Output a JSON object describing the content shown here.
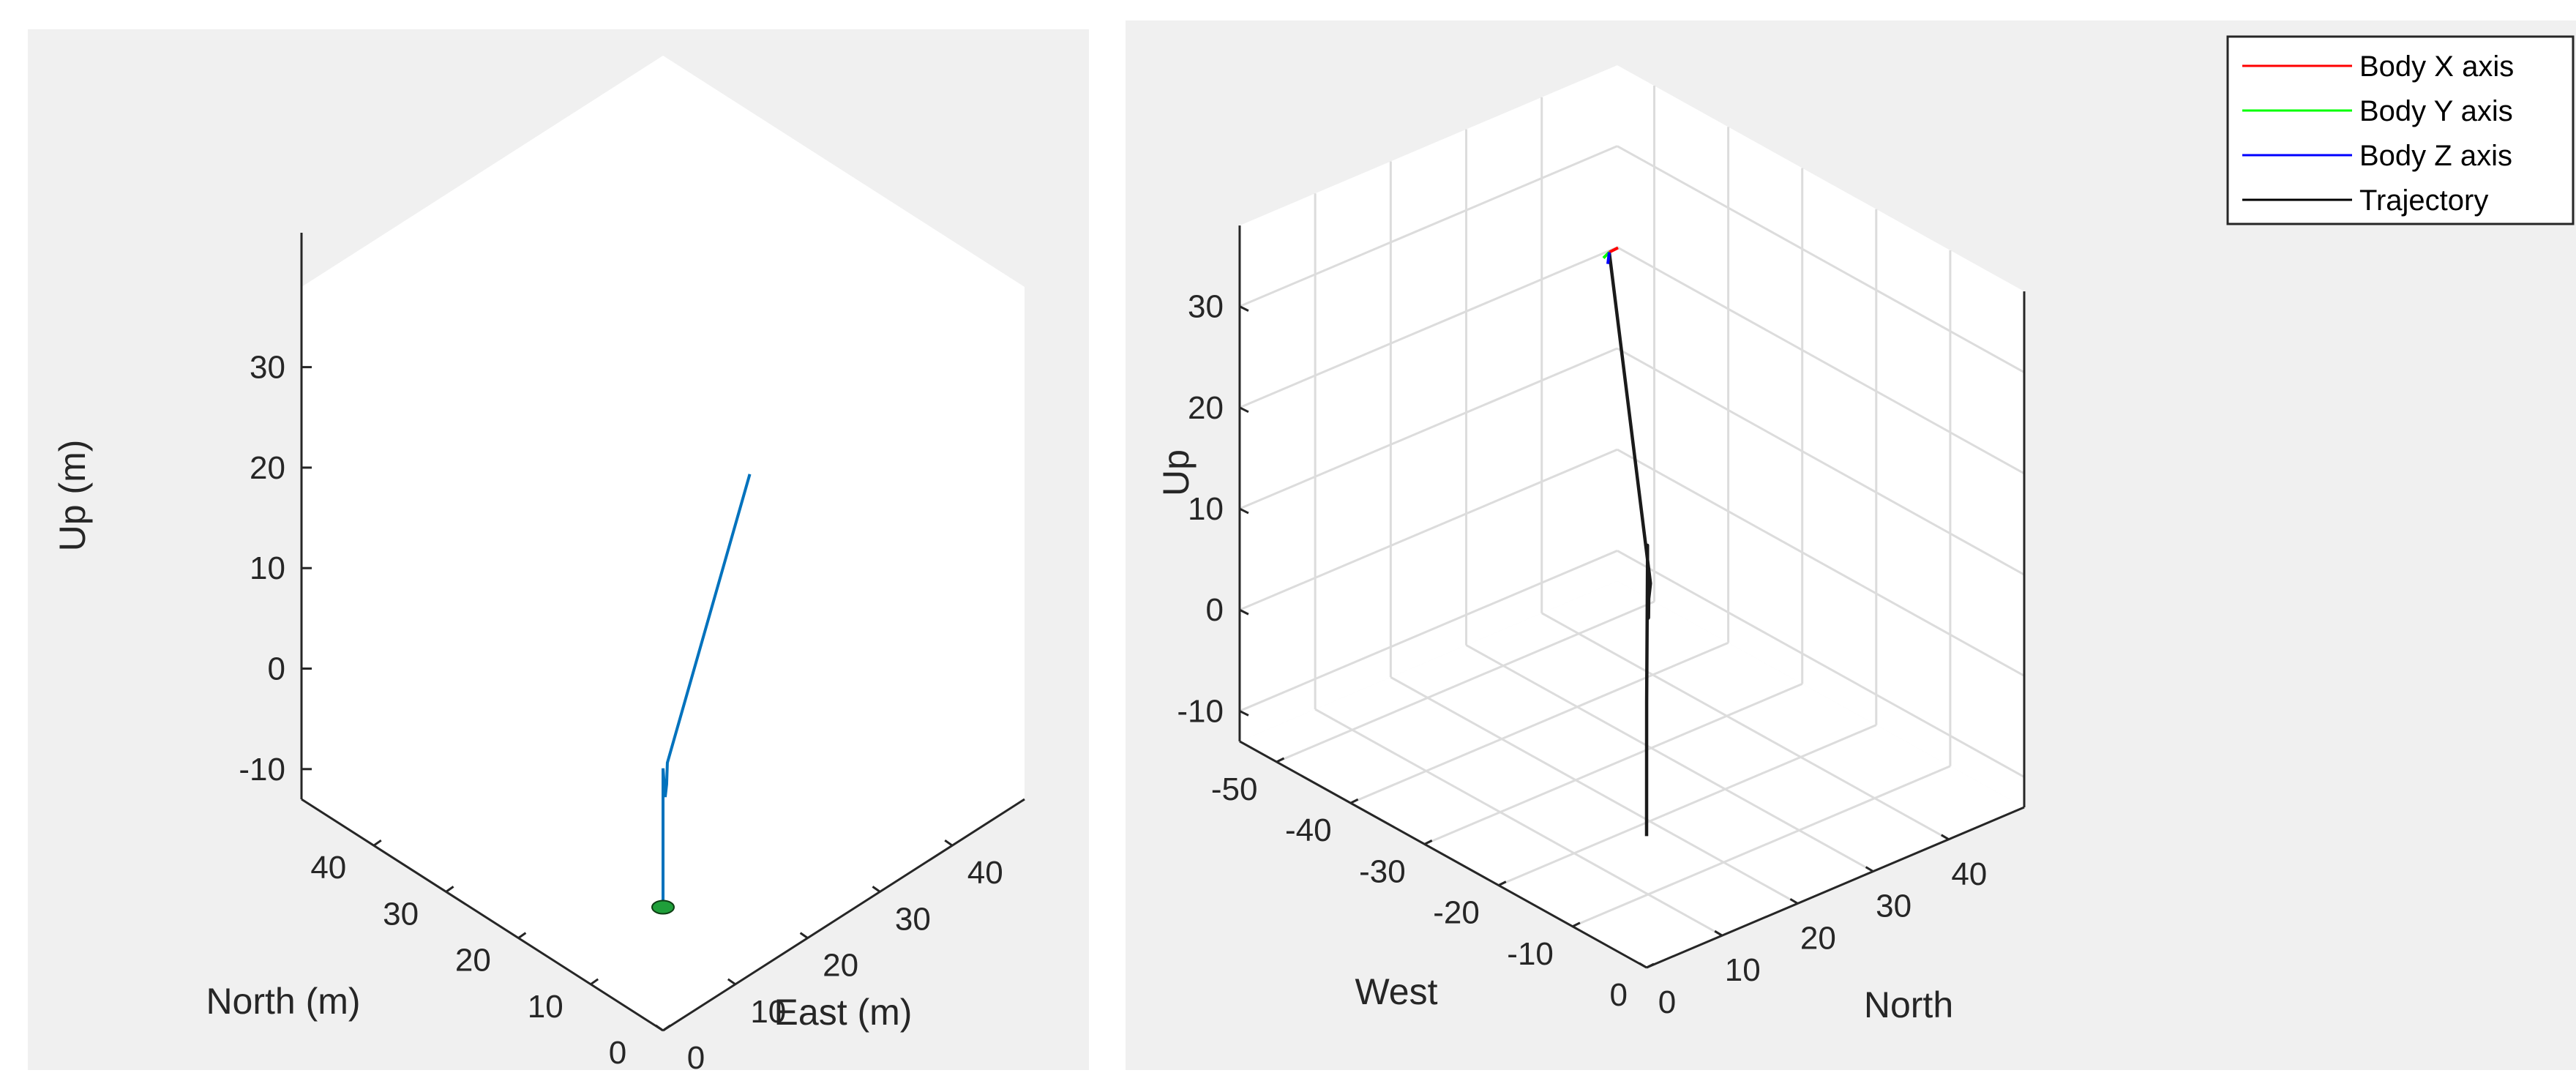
{
  "chart_data": [
    {
      "type": "line",
      "subtype": "3d-trajectory",
      "view": "isometric",
      "xlabel": "East (m)",
      "ylabel": "North (m)",
      "zlabel": "Up (m)",
      "xlim": [
        0,
        50
      ],
      "ylim": [
        0,
        50
      ],
      "zlim": [
        -13,
        38
      ],
      "xticks": [
        "0",
        "10",
        "20",
        "30",
        "40"
      ],
      "yticks": [
        "0",
        "10",
        "20",
        "30",
        "40"
      ],
      "zticks": [
        "-10",
        "0",
        "10",
        "20",
        "30"
      ],
      "grid": false,
      "box_fill": "#ffffff",
      "series": [
        {
          "color": "#0072bd",
          "points": [
            {
              "x": 0,
              "y": 0,
              "z": 0
            },
            {
              "x": 0,
              "y": 0,
              "z": 12
            },
            {
              "x": 0.1,
              "y": 0.1,
              "z": 13
            },
            {
              "x": 0.4,
              "y": 0.1,
              "z": 10
            },
            {
              "x": 0.8,
              "y": 0.3,
              "z": 11
            },
            {
              "x": 1.0,
              "y": 0.4,
              "z": 13
            },
            {
              "x": 14.0,
              "y": 2.0,
              "z": 35
            }
          ]
        }
      ],
      "markers": [
        {
          "name": "start-marker",
          "color": "#1f9f3a",
          "x": 0,
          "y": 0,
          "z": 0
        }
      ]
    },
    {
      "type": "line",
      "subtype": "3d-trajectory",
      "view": "3d",
      "xlabel": "North",
      "ylabel": "West",
      "zlabel": "Up",
      "xlim": [
        0,
        50
      ],
      "ylim": [
        -55,
        0
      ],
      "zlim": [
        -13,
        38
      ],
      "xticks": [
        "0",
        "10",
        "20",
        "30",
        "40"
      ],
      "yticks": [
        "0",
        "-10",
        "-20",
        "-30",
        "-40",
        "-50"
      ],
      "zticks": [
        "-10",
        "0",
        "10",
        "20",
        "30"
      ],
      "grid": true,
      "legend": {
        "position": "top-right",
        "entries": [
          {
            "label": "Body X axis",
            "color": "#ff0000"
          },
          {
            "label": "Body Y axis",
            "color": "#00ff00"
          },
          {
            "label": "Body Z axis",
            "color": "#0000ff"
          },
          {
            "label": "Trajectory",
            "color": "#000000"
          }
        ]
      },
      "series": [
        {
          "name": "Trajectory",
          "color": "#1a1a1a",
          "points": [
            {
              "x": 0,
              "y": 0,
              "z": 0
            },
            {
              "x": 0.4,
              "y": -0.4,
              "z": 13
            },
            {
              "x": 0.9,
              "y": -0.8,
              "z": 26
            },
            {
              "x": 1.1,
              "y": -1.0,
              "z": 28
            },
            {
              "x": 1.5,
              "y": -1.4,
              "z": 24
            },
            {
              "x": 2.1,
              "y": -2.0,
              "z": 20
            },
            {
              "x": 3.0,
              "y": -2.8,
              "z": 19.5
            },
            {
              "x": 4.2,
              "y": -4.0,
              "z": 20.5
            },
            {
              "x": 6.0,
              "y": -5.6,
              "z": 20.8
            },
            {
              "x": 46,
              "y": -52,
              "z": 22
            }
          ]
        }
      ]
    }
  ]
}
